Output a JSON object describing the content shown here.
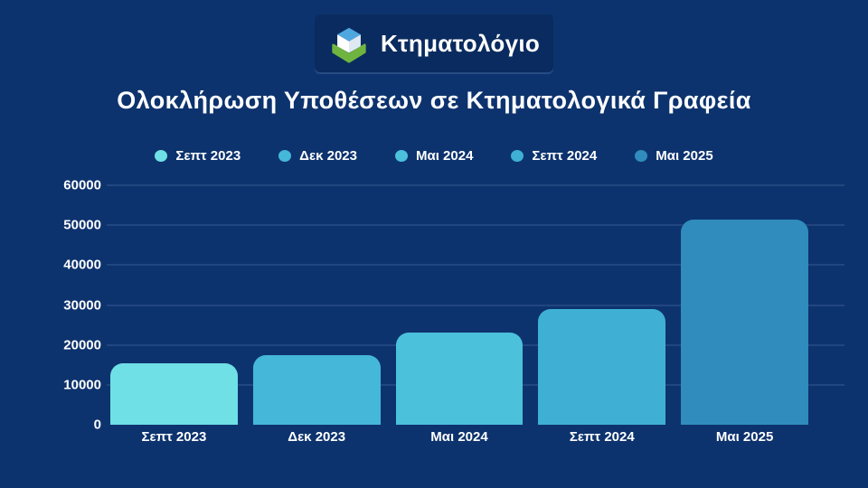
{
  "page": {
    "background": "#0d336e"
  },
  "logo": {
    "text": "Κτηματολόγιο",
    "colors": {
      "cube_top": "#4fa7e0",
      "cube_left": "#ffffff",
      "cube_right": "#dfe9f2",
      "chevron": "#6fb43f",
      "box_background": "#0a2b5f"
    }
  },
  "title": "Ολοκλήρωση Υποθέσεων σε Κτηματολογικά Γραφεία",
  "chart_data": {
    "type": "bar",
    "title": "Ολοκλήρωση Υποθέσεων σε Κτηματολογικά Γραφεία",
    "categories": [
      "Σεπτ 2023",
      "Δεκ 2023",
      "Μαι 2024",
      "Σεπτ 2024",
      "Μαι 2025"
    ],
    "values": [
      15500,
      17500,
      23000,
      29000,
      51500
    ],
    "bar_colors": [
      "#6fe0e6",
      "#45b7d9",
      "#4cc1dc",
      "#3fb0d4",
      "#2f8cbd"
    ],
    "legend": [
      "Σεπτ 2023",
      "Δεκ 2023",
      "Μαι 2024",
      "Σεπτ 2024",
      "Μαι 2025"
    ],
    "legend_position": "top",
    "xlabel": "",
    "ylabel": "",
    "ylim": [
      0,
      60000
    ],
    "yticks": [
      0,
      10000,
      20000,
      30000,
      40000,
      50000,
      60000
    ],
    "grid": true,
    "background": "#0d336e"
  }
}
